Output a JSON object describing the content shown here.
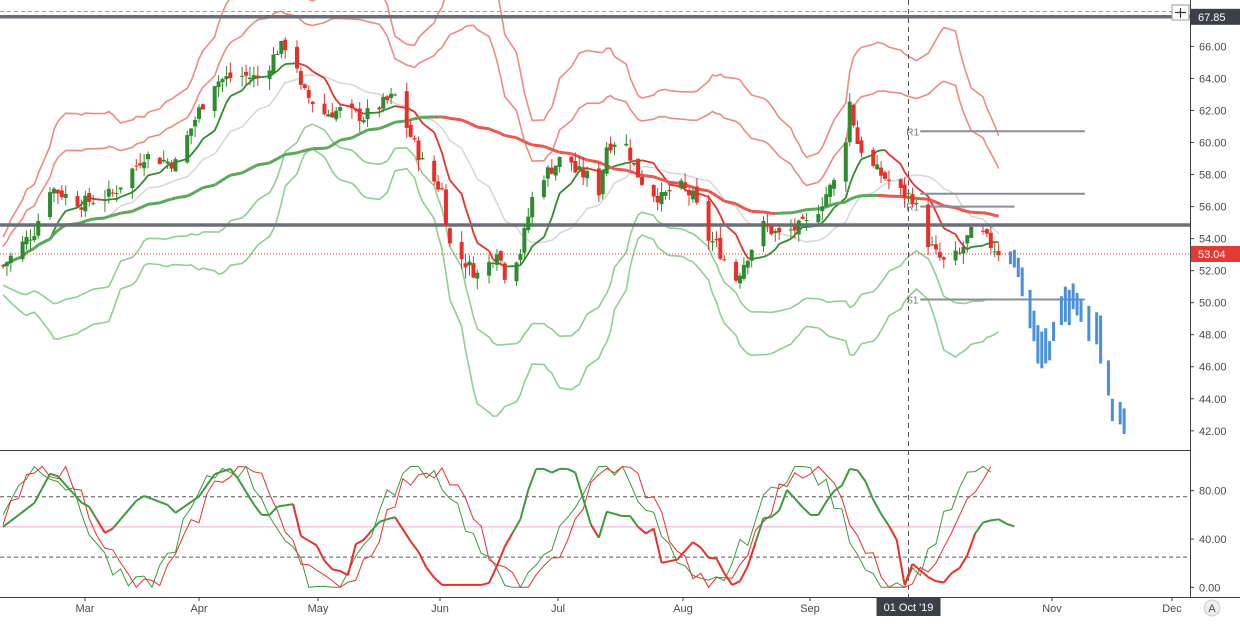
{
  "chart_data": {
    "type": "candlestick",
    "price_axis": {
      "ticks": [
        "66.00",
        "64.00",
        "62.00",
        "60.00",
        "58.00",
        "56.00",
        "54.00",
        "52.00",
        "50.00",
        "48.00",
        "46.00",
        "44.00",
        "42.00"
      ],
      "ylim": [
        40.8,
        68.4
      ]
    },
    "oscillator_axis": {
      "ticks": [
        "80.00",
        "40.00",
        "0.00"
      ],
      "ylim": [
        -8,
        112
      ],
      "levels": [
        75,
        25
      ]
    },
    "time_axis": {
      "labels": [
        "Mar",
        "Apr",
        "May",
        "Jun",
        "Jul",
        "Aug",
        "Sep",
        "Nov",
        "Dec"
      ],
      "crosshair_label": "01 Oct '19"
    },
    "price_tags": [
      {
        "text": "67.85",
        "value": 67.85,
        "color": "#3b3f4a"
      },
      {
        "text": "53.04",
        "value": 53.04,
        "color": "#e53935"
      }
    ],
    "horizontal_lines": [
      {
        "value": 67.85,
        "color": "#6b6f78"
      },
      {
        "value": 54.85,
        "color": "#6b6f78"
      }
    ],
    "current_price_line": 53.04,
    "pivots": [
      {
        "label": "R1",
        "value": 60.7
      },
      {
        "label": "R1",
        "value": 56.0
      },
      {
        "label": "S1",
        "value": 50.2
      }
    ],
    "pivot_extra_lines": [
      56.8
    ],
    "icons": {
      "crosshair": "crosshair-icon",
      "scale_mode": "auto-scale-icon"
    },
    "auto_label": "A",
    "colors": {
      "up": "#2e8b2e",
      "down": "#e8302a",
      "projection": "#4a90d9",
      "bb_red": "#f08a80",
      "bb_green": "#8fcf8f",
      "ma_red": "#e8584f",
      "ma_green": "#5aa85a",
      "ma_gray": "#d8d8d8",
      "osc_green": "#3d9a3d",
      "osc_red": "#e8302a",
      "osc_pink": "#f2a7c9"
    }
  }
}
